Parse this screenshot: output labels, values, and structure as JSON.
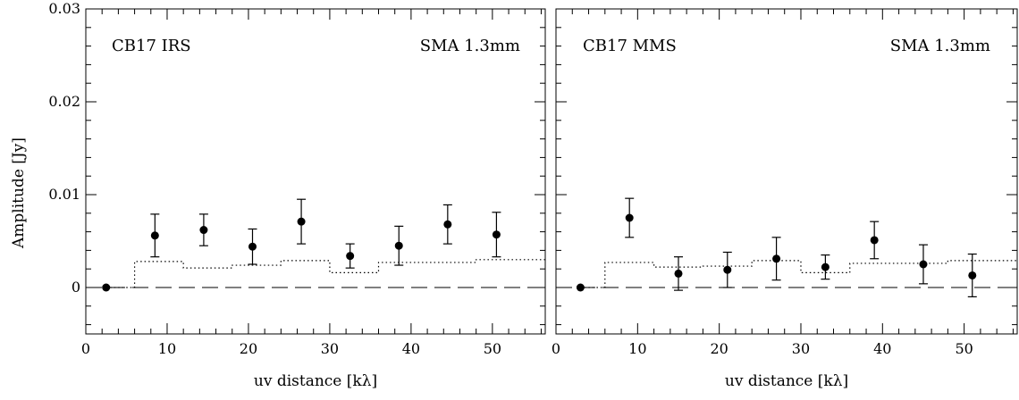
{
  "chart_data": [
    {
      "type": "scatter",
      "panel_label": "CB17 IRS",
      "annotation": "SMA 1.3mm",
      "xlabel": "uv distance [kλ]",
      "ylabel": "Amplitude [Jy]",
      "xlim": [
        0,
        56.5
      ],
      "ylim": [
        -0.005,
        0.03
      ],
      "x_ticks": [
        0,
        10,
        20,
        30,
        40,
        50
      ],
      "x_tick_labels": [
        "0",
        "10",
        "20",
        "30",
        "40",
        "50"
      ],
      "y_ticks": [
        0,
        0.01,
        0.02,
        0.03
      ],
      "y_tick_labels": [
        "0",
        "0.01",
        "0.02",
        "0.03"
      ],
      "grid": false,
      "points": [
        {
          "x": 2.5,
          "y": 0.0,
          "err": 0
        },
        {
          "x": 8.5,
          "y": 0.0056,
          "err": 0.0023
        },
        {
          "x": 14.5,
          "y": 0.0062,
          "err": 0.0017
        },
        {
          "x": 20.5,
          "y": 0.0044,
          "err": 0.0019
        },
        {
          "x": 26.5,
          "y": 0.0071,
          "err": 0.0024
        },
        {
          "x": 32.5,
          "y": 0.0034,
          "err": 0.0013
        },
        {
          "x": 38.5,
          "y": 0.0045,
          "err": 0.0021
        },
        {
          "x": 44.5,
          "y": 0.0068,
          "err": 0.0021
        },
        {
          "x": 50.5,
          "y": 0.0057,
          "err": 0.0024
        }
      ],
      "model_step": [
        {
          "x0": 2.5,
          "x1": 6.0,
          "y": 0.0
        },
        {
          "x0": 6.0,
          "x1": 12.0,
          "y": 0.0028
        },
        {
          "x0": 12.0,
          "x1": 18.0,
          "y": 0.0021
        },
        {
          "x0": 18.0,
          "x1": 24.0,
          "y": 0.0024
        },
        {
          "x0": 24.0,
          "x1": 30.0,
          "y": 0.0029
        },
        {
          "x0": 30.0,
          "x1": 36.0,
          "y": 0.0016
        },
        {
          "x0": 36.0,
          "x1": 48.0,
          "y": 0.0027
        },
        {
          "x0": 48.0,
          "x1": 56.5,
          "y": 0.003
        }
      ],
      "zero_line": 0
    },
    {
      "type": "scatter",
      "panel_label": "CB17 MMS",
      "annotation": "SMA 1.3mm",
      "xlabel": "uv distance [kλ]",
      "ylabel": "",
      "xlim": [
        0,
        56.5
      ],
      "ylim": [
        -0.005,
        0.03
      ],
      "x_ticks": [
        0,
        10,
        20,
        30,
        40,
        50
      ],
      "x_tick_labels": [
        "0",
        "10",
        "20",
        "30",
        "40",
        "50"
      ],
      "y_ticks": [
        0,
        0.01,
        0.02,
        0.03
      ],
      "y_tick_labels": [],
      "grid": false,
      "points": [
        {
          "x": 3.0,
          "y": 0.0,
          "err": 0
        },
        {
          "x": 9.0,
          "y": 0.0075,
          "err": 0.0021
        },
        {
          "x": 15.0,
          "y": 0.0015,
          "err": 0.0018
        },
        {
          "x": 21.0,
          "y": 0.0019,
          "err": 0.0019
        },
        {
          "x": 27.0,
          "y": 0.0031,
          "err": 0.0023
        },
        {
          "x": 33.0,
          "y": 0.0022,
          "err": 0.0013
        },
        {
          "x": 39.0,
          "y": 0.0051,
          "err": 0.002
        },
        {
          "x": 45.0,
          "y": 0.0025,
          "err": 0.0021
        },
        {
          "x": 51.0,
          "y": 0.0013,
          "err": 0.0023
        }
      ],
      "model_step": [
        {
          "x0": 3.0,
          "x1": 6.0,
          "y": 0.0
        },
        {
          "x0": 6.0,
          "x1": 12.0,
          "y": 0.0027
        },
        {
          "x0": 12.0,
          "x1": 18.0,
          "y": 0.0022
        },
        {
          "x0": 18.0,
          "x1": 24.0,
          "y": 0.0023
        },
        {
          "x0": 24.0,
          "x1": 30.0,
          "y": 0.0029
        },
        {
          "x0": 30.0,
          "x1": 36.0,
          "y": 0.0016
        },
        {
          "x0": 36.0,
          "x1": 48.0,
          "y": 0.0026
        },
        {
          "x0": 48.0,
          "x1": 56.5,
          "y": 0.0029
        }
      ],
      "zero_line": 0
    }
  ]
}
